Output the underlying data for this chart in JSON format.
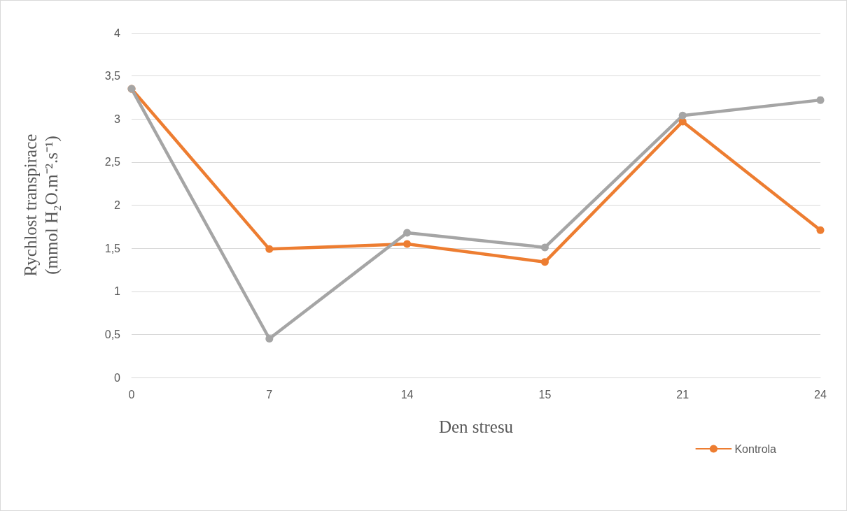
{
  "chart_data": {
    "type": "line",
    "xlabel": "Den stresu",
    "ylabel": "Rychlost transpirace\n(mmol H₂O.m⁻².s⁻¹)",
    "categories": [
      "0",
      "7",
      "14",
      "15",
      "21",
      "24"
    ],
    "series": [
      {
        "name": "Kontrola",
        "color": "#ed7d31",
        "values": [
          3.35,
          1.49,
          1.55,
          1.34,
          2.97,
          1.71
        ]
      },
      {
        "color": "#a5a5a5",
        "values": [
          3.35,
          0.45,
          1.68,
          1.51,
          3.04,
          3.22
        ]
      }
    ],
    "ylim": [
      0,
      4
    ],
    "yticks": [
      0,
      {
        "value": 0.5,
        "label": "0,5"
      },
      1,
      {
        "value": 1.5,
        "label": "1,5"
      },
      2,
      {
        "value": 2.5,
        "label": "2,5"
      },
      3,
      {
        "value": 3.5,
        "label": "3,5"
      },
      4
    ],
    "grid": "y",
    "legend": "bottom right",
    "marker": "circle",
    "line_style": "solid"
  }
}
